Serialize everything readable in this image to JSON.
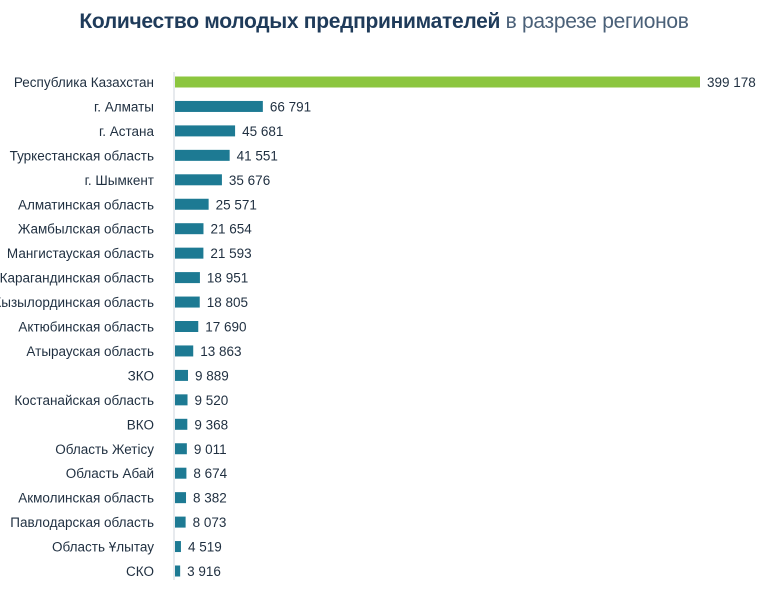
{
  "chart_data": {
    "type": "bar",
    "orientation": "horizontal",
    "title_bold": "Количество молодых предпринимателей",
    "title_rest": " в разрезе регионов",
    "categories": [
      "Республика Казахстан",
      "г. Алматы",
      "г. Астана",
      "Туркестанская область",
      "г. Шымкент",
      "Алматинская область",
      "Жамбылская область",
      "Мангистауская область",
      "Карагандинская область",
      "Кызылординская область",
      "Актюбинская область",
      "Атырауская область",
      "ЗКО",
      "Костанайская область",
      "ВКО",
      "Область Жетісу",
      "Область Абай",
      "Акмолинская область",
      "Павлодарская область",
      "Область Ұлытау",
      "СКО"
    ],
    "values": [
      399178,
      66791,
      45681,
      41551,
      35676,
      25571,
      21654,
      21593,
      18951,
      18805,
      17690,
      13863,
      9889,
      9520,
      9368,
      9011,
      8674,
      8382,
      8073,
      4519,
      3916
    ],
    "value_labels": [
      "399 178",
      "66 791",
      "45 681",
      "41 551",
      "35 676",
      "25 571",
      "21 654",
      "21 593",
      "18 951",
      "18 805",
      "17 690",
      "13 863",
      "9 889",
      "9 520",
      "9 368",
      "9 011",
      "8 674",
      "8 382",
      "8 073",
      "4 519",
      "3 916"
    ],
    "xlim": [
      0,
      399178
    ],
    "grid": false,
    "legend": "none",
    "colors": {
      "highlight": "#8cc63f",
      "bar": "#1d7a93"
    }
  }
}
